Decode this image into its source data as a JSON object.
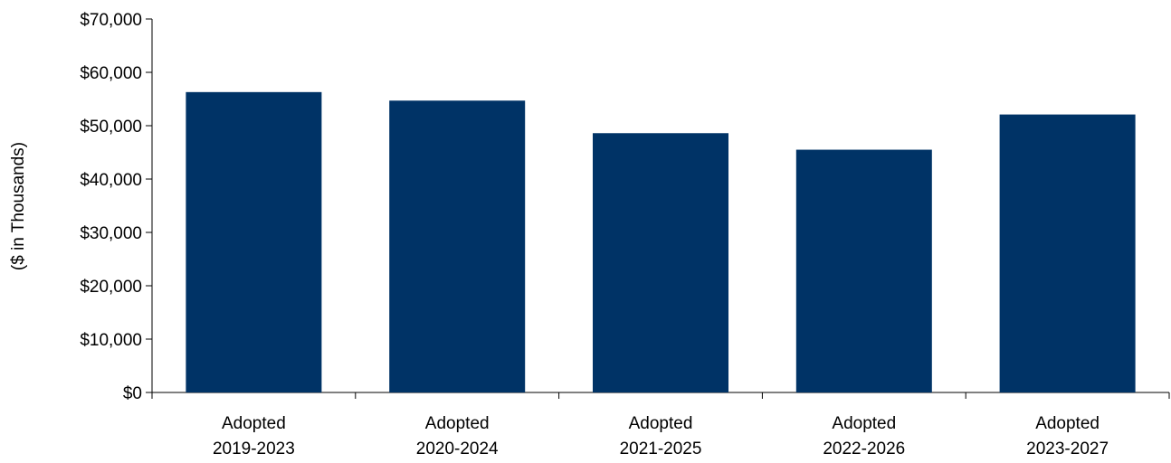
{
  "chart_data": {
    "type": "bar",
    "title": "",
    "xlabel": "",
    "ylabel": "($ in Thousands)",
    "ylim": [
      0,
      70000
    ],
    "yticks": [
      0,
      10000,
      20000,
      30000,
      40000,
      50000,
      60000,
      70000
    ],
    "ytick_labels": [
      "$0",
      "$10,000",
      "$20,000",
      "$30,000",
      "$40,000",
      "$50,000",
      "$60,000",
      "$70,000"
    ],
    "categories": [
      [
        "Adopted",
        "2019-2023"
      ],
      [
        "Adopted",
        "2020-2024"
      ],
      [
        "Adopted",
        "2021-2025"
      ],
      [
        "Adopted",
        "2022-2026"
      ],
      [
        "Adopted",
        "2023-2027"
      ]
    ],
    "values": [
      56300,
      54700,
      48600,
      45500,
      52100
    ],
    "bar_color": "#003366",
    "grid": false,
    "legend": "none"
  }
}
